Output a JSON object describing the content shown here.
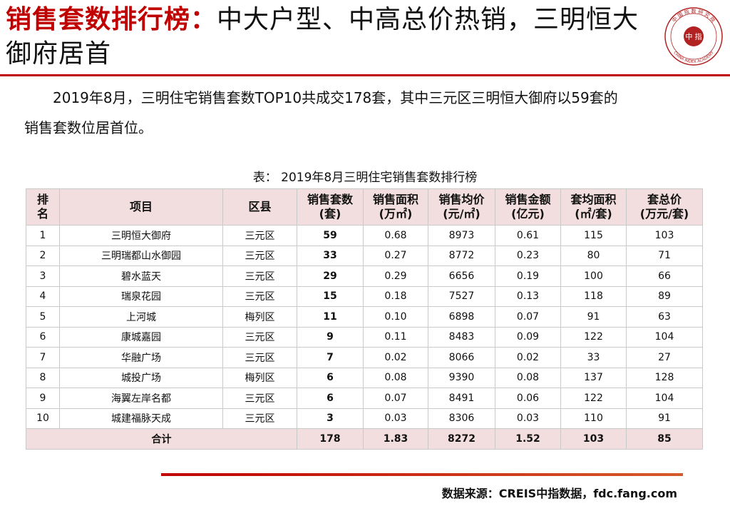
{
  "title": {
    "accent": "销售套数排行榜：",
    "rest": "中大户型、中高总价热销，三明恒大御府居首"
  },
  "logo": {
    "center_text": "中 指",
    "ring_text": "中 国 指 数 研 究 院",
    "english_text": "CHINA INDEX ACADEMY",
    "color": "#b22222"
  },
  "intro": {
    "line1": "2019年8月，三明住宅销售套数TOP10共成交178套，其中三元区三明恒大御府以59套的",
    "line2": "销售套数位居首位。"
  },
  "table": {
    "caption": "表： 2019年8月三明住宅销售套数排行榜",
    "headers": {
      "rank": [
        "排",
        "名"
      ],
      "project": "项目",
      "district": "区县",
      "units": [
        "销售套数",
        "(套)"
      ],
      "area": [
        "销售面积",
        "(万㎡)"
      ],
      "price": [
        "销售均价",
        "(元/㎡)"
      ],
      "amount": [
        "销售金额",
        "(亿元)"
      ],
      "avg_area": [
        "套均面积",
        "(㎡/套)"
      ],
      "avg_total": [
        "套总价",
        "(万元/套)"
      ]
    },
    "rows": [
      [
        "1",
        "三明恒大御府",
        "三元区",
        "59",
        "0.68",
        "8973",
        "0.61",
        "115",
        "103"
      ],
      [
        "2",
        "三明瑞都山水御园",
        "三元区",
        "33",
        "0.27",
        "8772",
        "0.23",
        "80",
        "71"
      ],
      [
        "3",
        "碧水蓝天",
        "三元区",
        "29",
        "0.29",
        "6656",
        "0.19",
        "100",
        "66"
      ],
      [
        "4",
        "瑞泉花园",
        "三元区",
        "15",
        "0.18",
        "7527",
        "0.13",
        "118",
        "89"
      ],
      [
        "5",
        "上河城",
        "梅列区",
        "11",
        "0.10",
        "6898",
        "0.07",
        "91",
        "63"
      ],
      [
        "6",
        "康城嘉园",
        "三元区",
        "9",
        "0.11",
        "8483",
        "0.09",
        "122",
        "104"
      ],
      [
        "7",
        "华融广场",
        "三元区",
        "7",
        "0.02",
        "8066",
        "0.02",
        "33",
        "27"
      ],
      [
        "8",
        "城投广场",
        "梅列区",
        "6",
        "0.08",
        "9390",
        "0.08",
        "137",
        "128"
      ],
      [
        "9",
        "海翼左岸名都",
        "三元区",
        "6",
        "0.07",
        "8491",
        "0.06",
        "122",
        "104"
      ],
      [
        "10",
        "城建福脉天成",
        "三元区",
        "3",
        "0.03",
        "8306",
        "0.03",
        "110",
        "91"
      ]
    ],
    "total": [
      "合计",
      "178",
      "1.83",
      "8272",
      "1.52",
      "103",
      "85"
    ]
  },
  "source": "数据来源：CREIS中指数据，fdc.fang.com"
}
